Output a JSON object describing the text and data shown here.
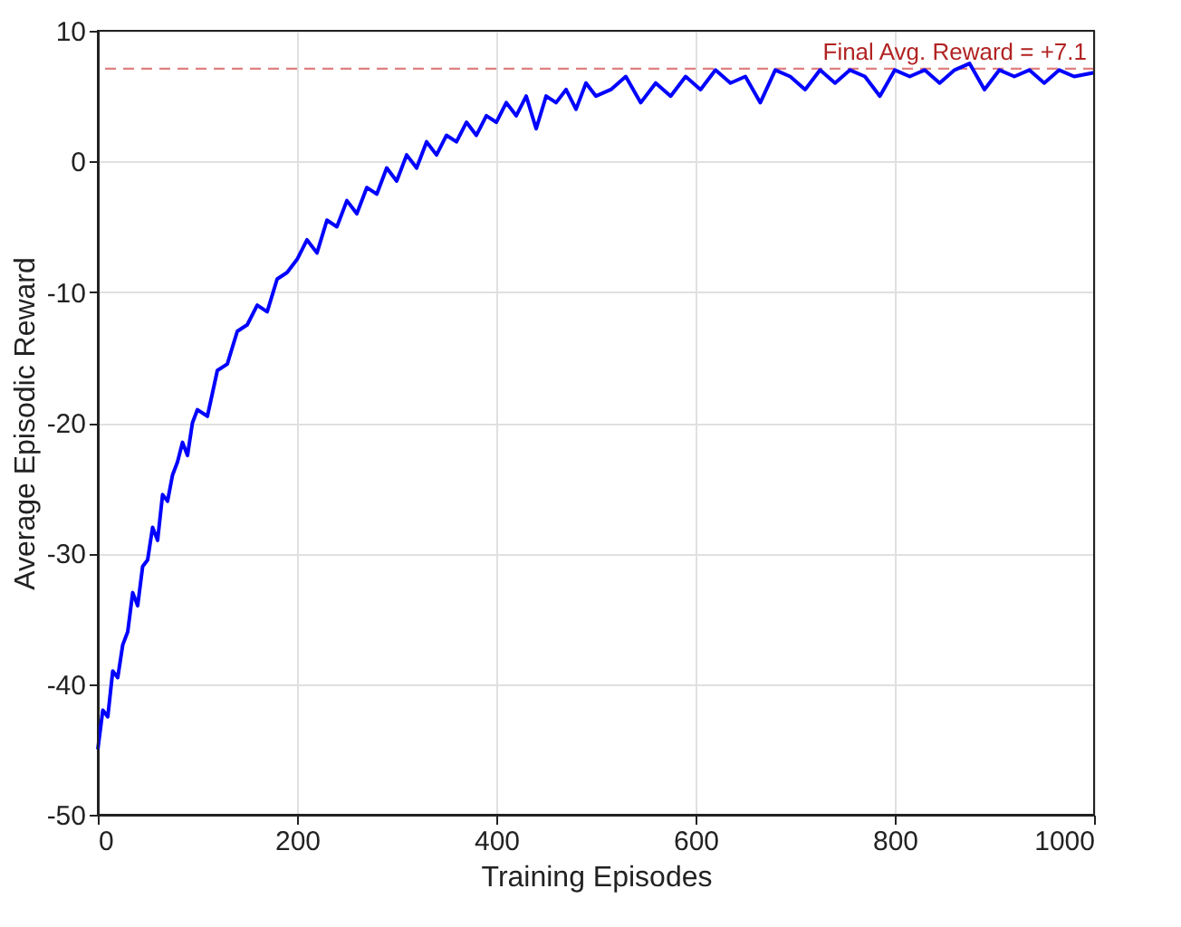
{
  "chart_data": {
    "type": "line",
    "xlabel": "Training Episodes",
    "ylabel": "Average Episodic Reward",
    "x": [
      0,
      5,
      10,
      15,
      20,
      25,
      30,
      35,
      40,
      45,
      50,
      55,
      60,
      65,
      70,
      75,
      80,
      85,
      90,
      95,
      100,
      110,
      120,
      130,
      140,
      150,
      160,
      170,
      180,
      190,
      200,
      210,
      220,
      230,
      240,
      250,
      260,
      270,
      280,
      290,
      300,
      310,
      320,
      330,
      340,
      350,
      360,
      370,
      380,
      390,
      400,
      410,
      420,
      430,
      440,
      450,
      460,
      470,
      480,
      490,
      500,
      515,
      530,
      545,
      560,
      575,
      590,
      605,
      620,
      635,
      650,
      665,
      680,
      695,
      710,
      725,
      740,
      755,
      770,
      785,
      800,
      815,
      830,
      845,
      860,
      875,
      890,
      905,
      920,
      935,
      950,
      965,
      980,
      1000
    ],
    "series": [
      {
        "color": "#0000ff",
        "values": [
          -45,
          -42,
          -42.5,
          -39,
          -39.5,
          -37,
          -36,
          -33,
          -34,
          -31,
          -30.5,
          -28,
          -29,
          -25.5,
          -26,
          -24,
          -23,
          -21.5,
          -22.5,
          -20,
          -19,
          -19.5,
          -16,
          -15.5,
          -13,
          -12.5,
          -11,
          -11.5,
          -9,
          -8.5,
          -7.5,
          -6,
          -7,
          -4.5,
          -5,
          -3,
          -4,
          -2,
          -2.5,
          -0.5,
          -1.5,
          0.5,
          -0.5,
          1.5,
          0.5,
          2,
          1.5,
          3,
          2,
          3.5,
          3,
          4.5,
          3.5,
          5,
          2.5,
          5,
          4.5,
          5.5,
          4,
          6,
          5,
          5.5,
          6.5,
          4.5,
          6,
          5,
          6.5,
          5.5,
          7,
          6,
          6.5,
          4.5,
          7,
          6.5,
          5.5,
          7,
          6,
          7,
          6.5,
          5,
          7,
          6.5,
          7,
          6,
          7,
          7.5,
          5.5,
          7,
          6.5,
          7,
          6,
          7,
          6.5,
          6.8
        ]
      }
    ],
    "xlim": [
      0,
      1000
    ],
    "ylim": [
      -50,
      10
    ],
    "xticks": [
      0,
      200,
      400,
      600,
      800,
      1000
    ],
    "yticks": [
      -50,
      -40,
      -30,
      -20,
      -10,
      0,
      10
    ],
    "ref_lines": [
      {
        "axis": "y",
        "value": 7.1,
        "label": "Final Avg. Reward = +7.1",
        "color": "#e08080",
        "line_style": "dashed"
      }
    ],
    "grid": true,
    "marker": "none",
    "line_style": "solid"
  }
}
